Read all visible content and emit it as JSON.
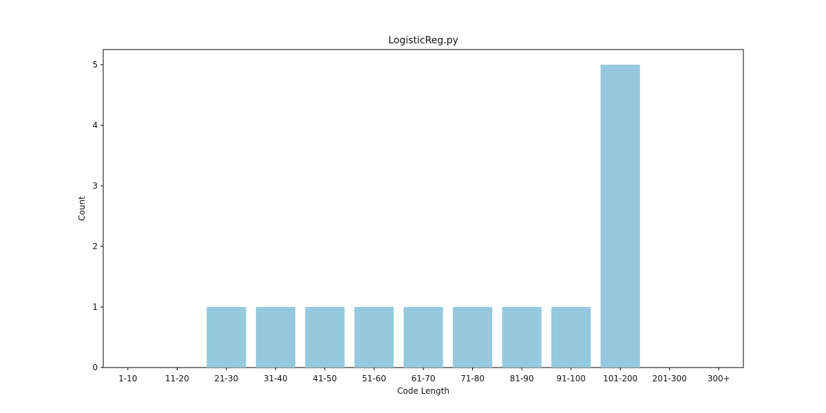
{
  "chart_data": {
    "type": "bar",
    "title": "LogisticReg.py",
    "xlabel": "Code Length",
    "ylabel": "Count",
    "categories": [
      "1-10",
      "11-20",
      "21-30",
      "31-40",
      "41-50",
      "51-60",
      "61-70",
      "71-80",
      "81-90",
      "91-100",
      "101-200",
      "201-300",
      "300+"
    ],
    "values": [
      0,
      0,
      1,
      1,
      1,
      1,
      1,
      1,
      1,
      1,
      5,
      0,
      0
    ],
    "ylim": [
      0,
      5.25
    ],
    "yticks": [
      0,
      1,
      2,
      3,
      4,
      5
    ],
    "grid": false,
    "bar_color": "#96c9dd",
    "axis_color": "#000000"
  }
}
